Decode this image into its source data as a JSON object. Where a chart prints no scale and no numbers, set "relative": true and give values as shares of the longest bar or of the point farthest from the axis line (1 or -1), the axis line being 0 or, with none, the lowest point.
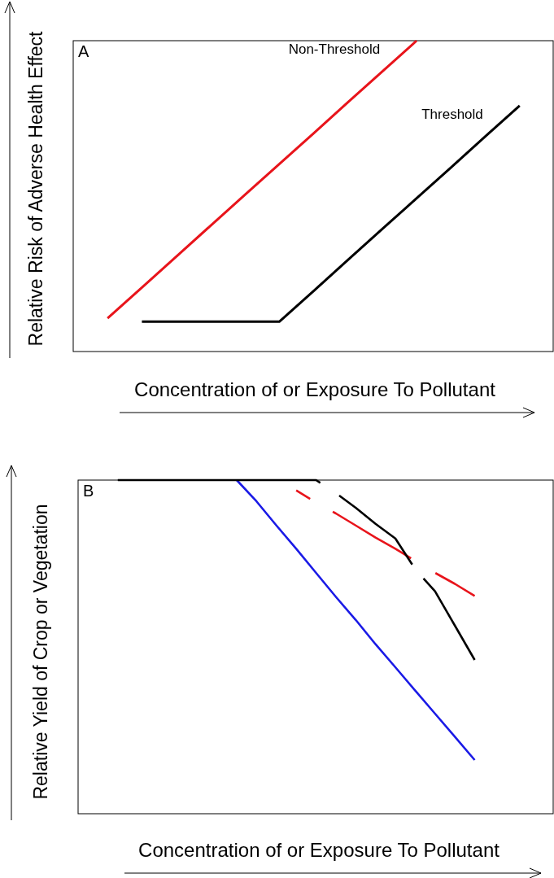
{
  "chart_data": [
    {
      "type": "line",
      "title": "A",
      "xlabel": "Concentration of or Exposure To Pollutant",
      "ylabel": "Relative Risk of Adverse Health Effect",
      "relative": true,
      "categories": [
        null,
        null,
        null,
        null,
        null,
        null,
        null,
        null,
        null,
        null,
        null,
        null,
        null,
        null,
        null
      ],
      "series": [
        {
          "name": "Non-Threshold",
          "color": "#e8141b",
          "values": [
            null,
            0.107,
            0.206,
            0.305,
            0.405,
            0.504,
            0.603,
            0.702,
            0.802,
            0.901,
            1,
            null,
            null,
            null,
            null
          ]
        },
        {
          "name": "Threshold",
          "color": "#000000",
          "values": [
            null,
            null,
            0.096,
            0.096,
            0.096,
            0.096,
            0.096,
            0.195,
            0.295,
            0.394,
            0.493,
            0.592,
            0.692,
            0.791,
            null
          ]
        }
      ]
    },
    {
      "type": "line",
      "title": "B",
      "xlabel": "Concentration of or Exposure To Pollutant",
      "ylabel": "Relative Yield of Crop or Vegetation",
      "relative": true,
      "categories": [
        null,
        null,
        null,
        null,
        null,
        null,
        null,
        null,
        null,
        null,
        null,
        null,
        null,
        null,
        null,
        null,
        null,
        null,
        null,
        null,
        null,
        null,
        null,
        null,
        null
      ],
      "series": [
        {
          "color": "#e8141b",
          "line_style": "dashed",
          "values": [
            null,
            null,
            null,
            null,
            null,
            null,
            null,
            null,
            null,
            null,
            null,
            0.969,
            0.933,
            0.9,
            0.864,
            0.828,
            0.794,
            0.758,
            0.722,
            0.689,
            0.653,
            null,
            null,
            null,
            null
          ]
        },
        {
          "color": "#1a1ae6",
          "line_style": "solid",
          "values": [
            null,
            null,
            null,
            null,
            null,
            null,
            null,
            null,
            1,
            0.936,
            0.864,
            0.794,
            0.722,
            0.65,
            0.581,
            0.508,
            0.439,
            0.369,
            0.3,
            0.231,
            0.161,
            null,
            null,
            null,
            null
          ]
        },
        {
          "color": "#000000",
          "line_style": "dashed",
          "values": [
            null,
            null,
            1,
            1,
            1,
            1,
            1,
            1,
            1,
            1,
            1,
            1,
            1,
            0.961,
            0.917,
            0.869,
            0.825,
            0.733,
            0.667,
            0.564,
            0.461,
            null,
            null,
            null,
            null
          ]
        }
      ]
    }
  ]
}
